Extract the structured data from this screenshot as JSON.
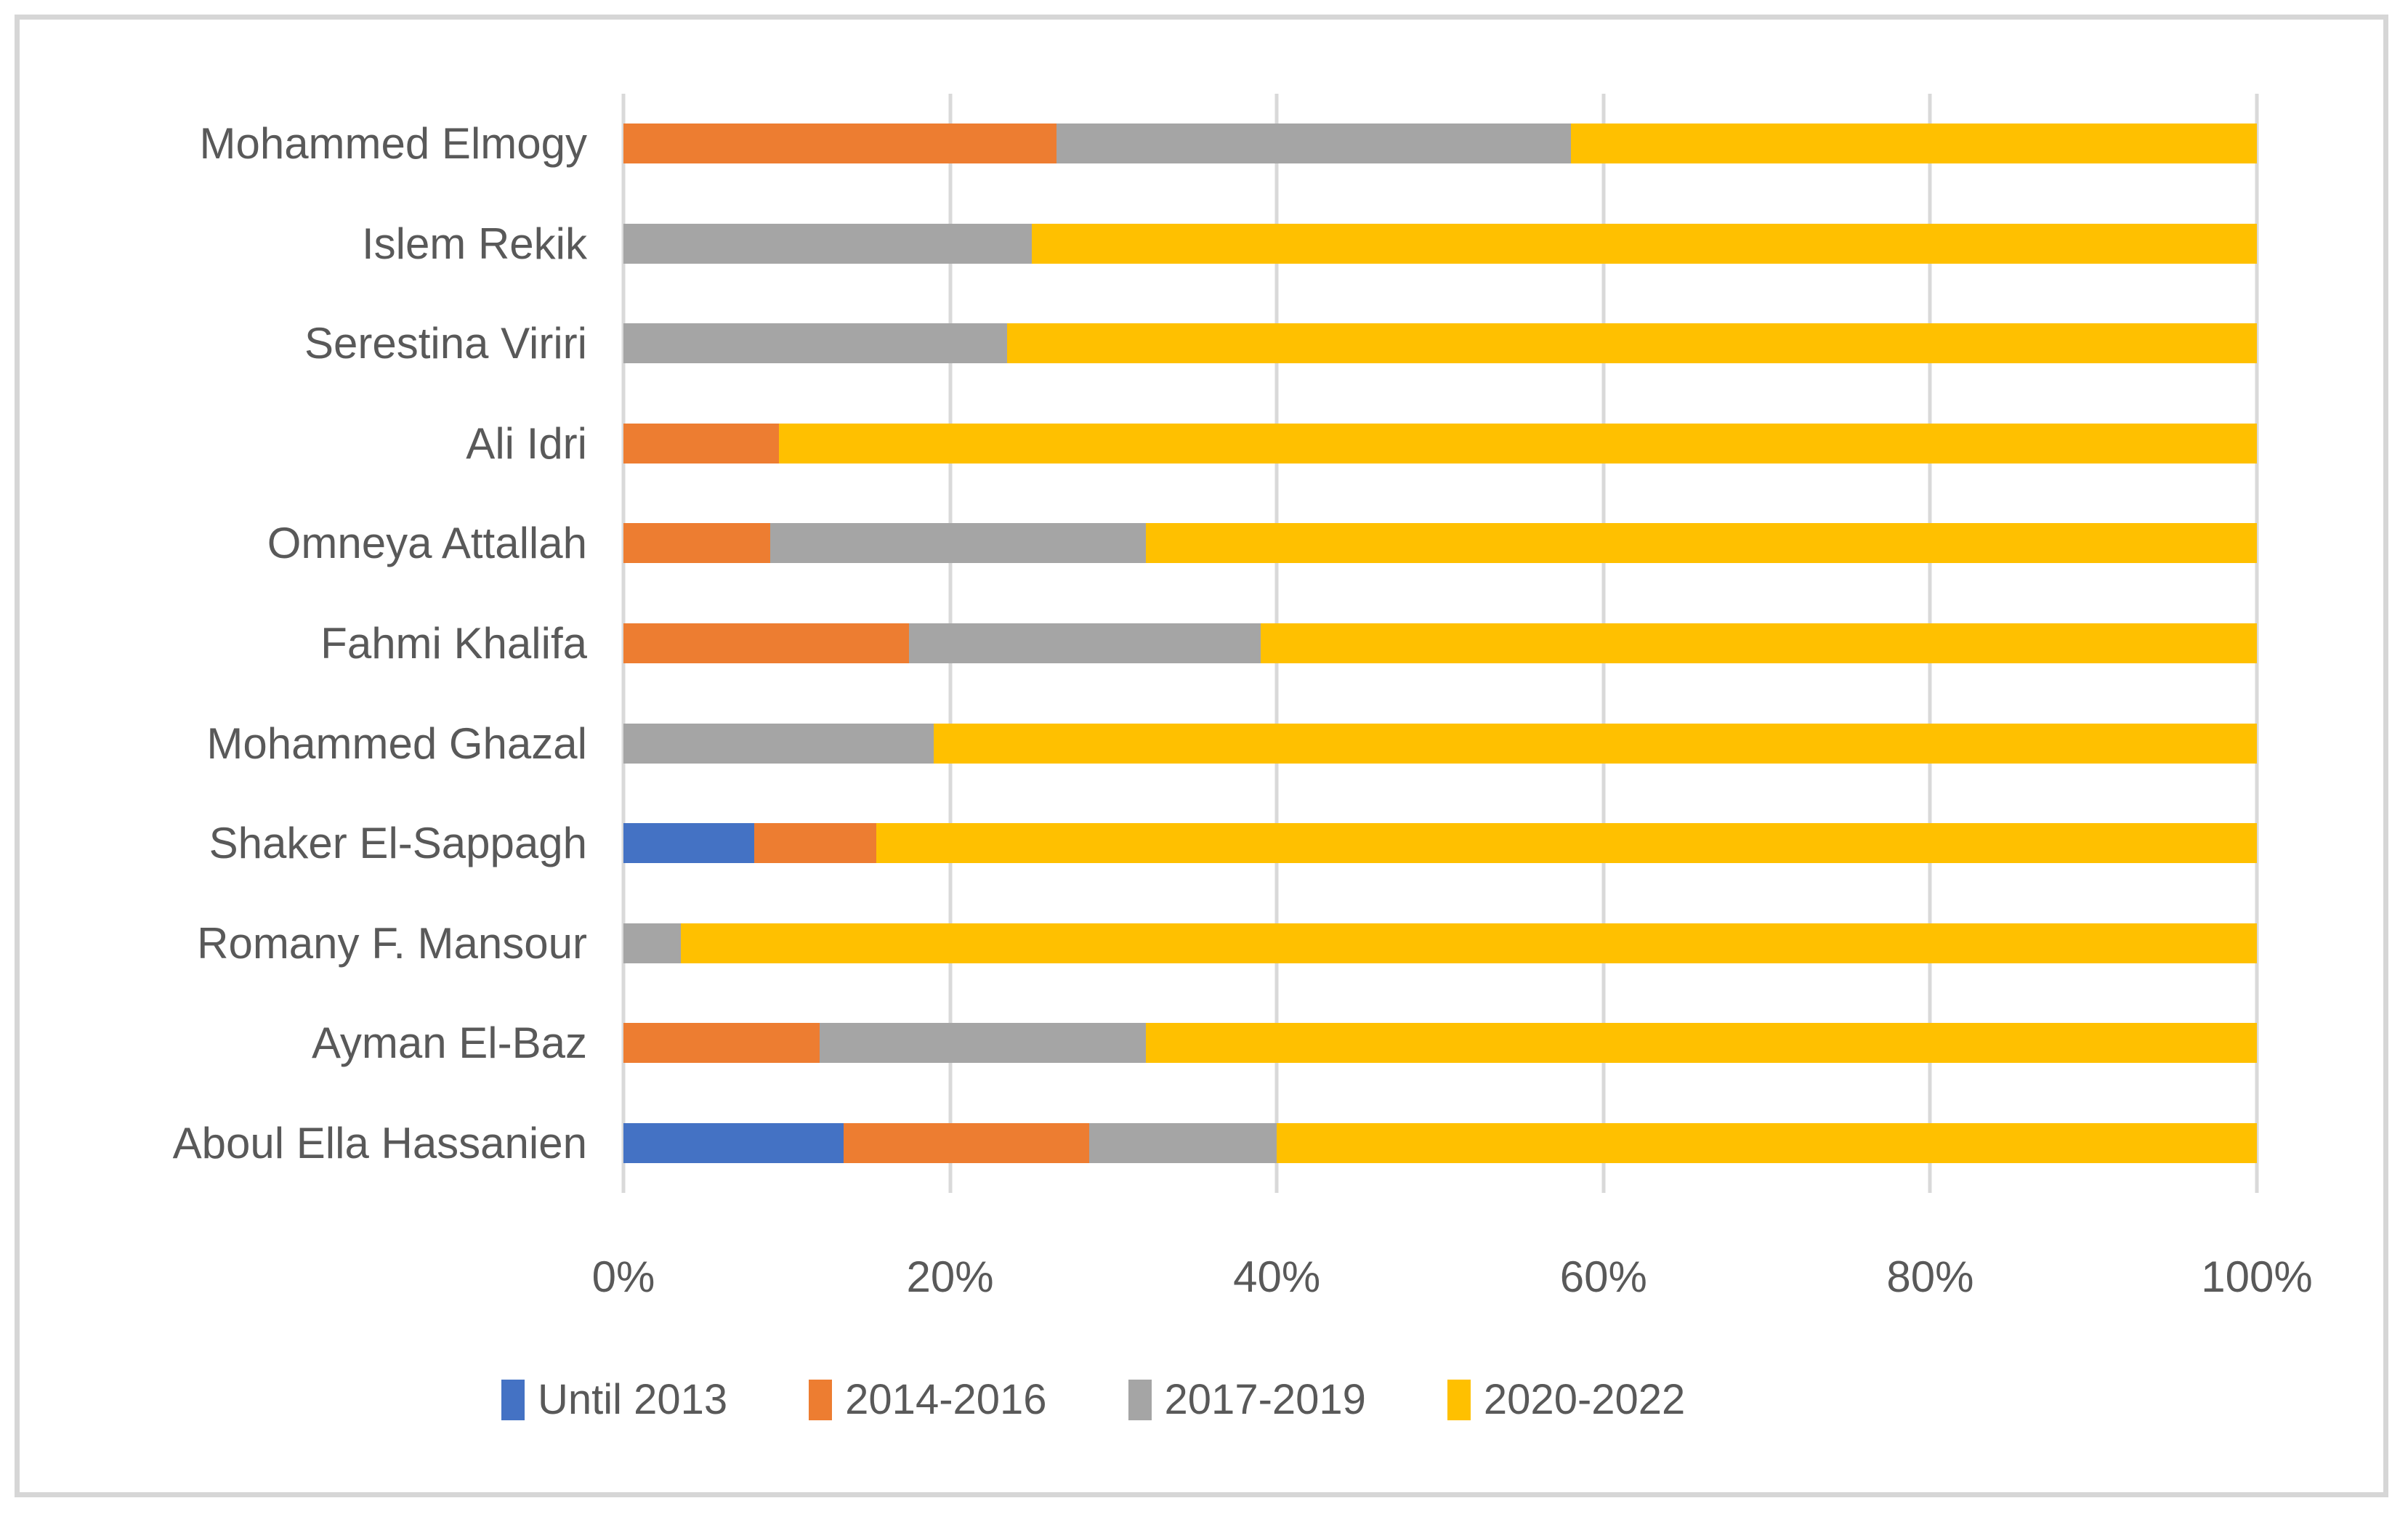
{
  "chart_data": {
    "type": "bar",
    "orientation": "horizontal",
    "stacked_percent": true,
    "title": "",
    "xlabel": "",
    "ylabel": "",
    "grid": true,
    "legend_position": "bottom",
    "categories": [
      "Mohammed Elmogy",
      "Islem Rekik",
      "Serestina Viriri",
      "Ali Idri",
      "Omneya Attallah",
      "Fahmi Khalifa",
      "Mohammed Ghazal",
      "Shaker El-Sappagh",
      "Romany F. Mansour",
      "Ayman El-Baz",
      "Aboul Ella Hassanien"
    ],
    "series": [
      {
        "name": "Until 2013",
        "color": "#4472C4",
        "values": [
          0,
          0,
          0,
          0,
          0,
          0,
          0,
          8,
          0,
          0,
          13.5
        ]
      },
      {
        "name": "2014-2016",
        "color": "#ED7D31",
        "values": [
          26.5,
          0,
          0,
          9.5,
          9,
          17.5,
          0,
          7.5,
          0,
          12,
          15
        ]
      },
      {
        "name": "2017-2019",
        "color": "#A5A5A5",
        "values": [
          31.5,
          25,
          23.5,
          0,
          23,
          21.5,
          19,
          0,
          3.5,
          20,
          11.5
        ]
      },
      {
        "name": "2020-2022",
        "color": "#FFC000",
        "values": [
          42,
          75,
          76.5,
          90.5,
          68,
          61,
          81,
          84.5,
          96.5,
          68,
          60
        ]
      }
    ],
    "x_axis": {
      "min": 0,
      "max": 100,
      "tick_step": 20,
      "tick_labels": [
        "0%",
        "20%",
        "40%",
        "60%",
        "80%",
        "100%"
      ]
    }
  },
  "appearance": {
    "text_color": "#595959",
    "grid_color": "#D9D9D9",
    "border_color": "#D6D6D6",
    "background_color": "#FFFFFF"
  }
}
